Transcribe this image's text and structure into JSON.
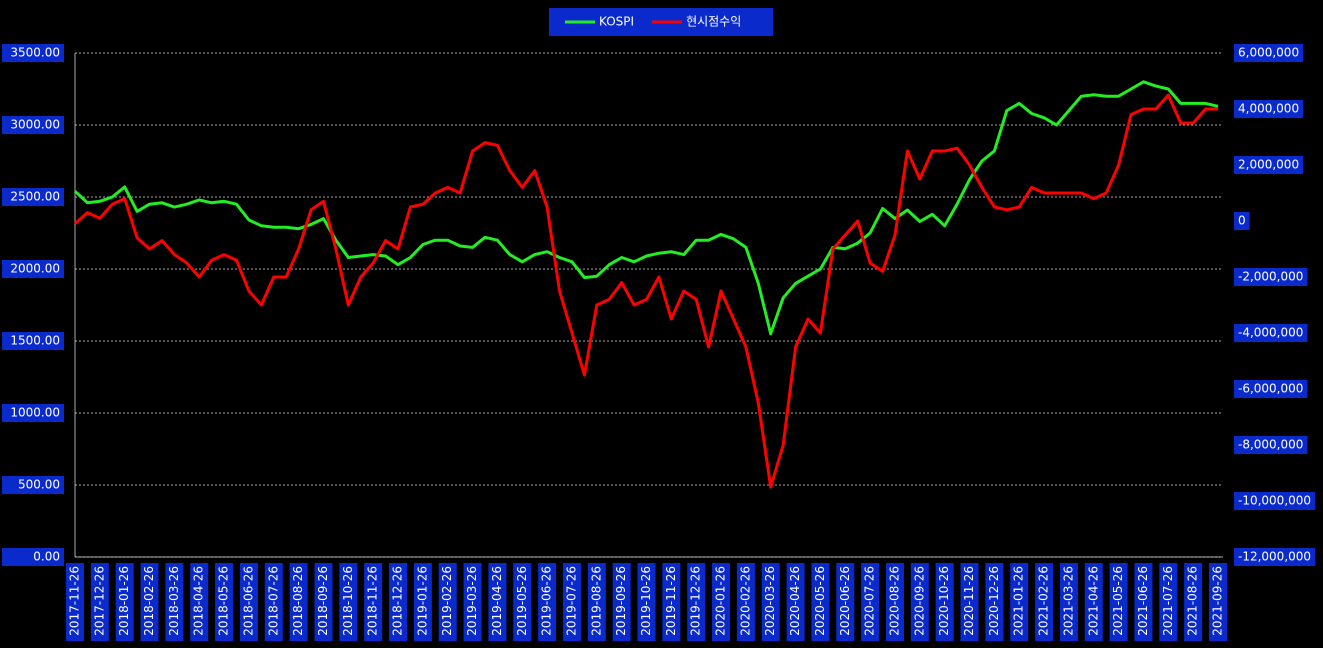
{
  "chart_data": {
    "type": "line",
    "grid": true,
    "categories": [
      "2017-11-26",
      null,
      "2017-12-26",
      null,
      "2018-01-26",
      null,
      "2018-02-26",
      null,
      "2018-03-26",
      null,
      "2018-04-26",
      null,
      "2018-05-26",
      null,
      "2018-06-26",
      null,
      "2018-07-26",
      null,
      "2018-08-26",
      null,
      "2018-09-26",
      null,
      "2018-10-26",
      null,
      "2018-11-26",
      null,
      "2018-12-26",
      null,
      "2019-01-26",
      null,
      "2019-02-26",
      null,
      "2019-03-26",
      null,
      "2019-04-26",
      null,
      "2019-05-26",
      null,
      "2019-06-26",
      null,
      "2019-07-26",
      null,
      "2019-08-26",
      null,
      "2019-09-26",
      null,
      "2019-10-26",
      null,
      "2019-11-26",
      null,
      "2019-12-26",
      null,
      "2020-01-26",
      null,
      "2020-02-26",
      null,
      "2020-03-26",
      null,
      "2020-04-26",
      null,
      "2020-05-26",
      null,
      "2020-06-26",
      null,
      "2020-07-26",
      null,
      "2020-08-26",
      null,
      "2020-09-26",
      null,
      "2020-10-26",
      null,
      "2020-11-26",
      null,
      "2020-12-26",
      null,
      "2021-01-26",
      null,
      "2021-02-26",
      null,
      "2021-03-26",
      null,
      "2021-04-26",
      null,
      "2021-05-26",
      null,
      "2021-06-26",
      null,
      "2021-07-26",
      null,
      "2021-08-26",
      null,
      "2021-09-26"
    ],
    "series": [
      {
        "name": "KOSPI",
        "color": "#22ee22",
        "values": [
          2540,
          2460,
          2470,
          2500,
          2570,
          2400,
          2450,
          2460,
          2430,
          2450,
          2480,
          2460,
          2470,
          2450,
          2340,
          2300,
          2290,
          2290,
          2280,
          2310,
          2350,
          2200,
          2080,
          2090,
          2100,
          2090,
          2030,
          2080,
          2170,
          2200,
          2200,
          2160,
          2150,
          2220,
          2200,
          2100,
          2050,
          2100,
          2120,
          2080,
          2050,
          1940,
          1950,
          2030,
          2080,
          2050,
          2090,
          2110,
          2120,
          2100,
          2200,
          2200,
          2240,
          2210,
          2150,
          1900,
          1550,
          1800,
          1900,
          1950,
          2000,
          2150,
          2140,
          2180,
          2250,
          2420,
          2350,
          2410,
          2330,
          2380,
          2300,
          2450,
          2620,
          2750,
          2820,
          3100,
          3150,
          3080,
          3050,
          3000,
          3100,
          3200,
          3210,
          3200,
          3200,
          3250,
          3300,
          3270,
          3250,
          3150,
          3150,
          3150,
          3130
        ]
      },
      {
        "name": "현시점수익",
        "color": "#ff0000",
        "axis": "y2",
        "values": [
          -100000,
          300000,
          100000,
          600000,
          800000,
          -600000,
          -1000000,
          -700000,
          -1200000,
          -1500000,
          -2000000,
          -1400000,
          -1200000,
          -1400000,
          -2500000,
          -3000000,
          -2000000,
          -2000000,
          -1000000,
          400000,
          700000,
          -1000000,
          -3000000,
          -2000000,
          -1500000,
          -700000,
          -1000000,
          500000,
          600000,
          1000000,
          1200000,
          1000000,
          2500000,
          2800000,
          2700000,
          1800000,
          1200000,
          1800000,
          500000,
          -2500000,
          -4000000,
          -5500000,
          -3000000,
          -2800000,
          -2200000,
          -3000000,
          -2800000,
          -2000000,
          -3500000,
          -2500000,
          -2800000,
          -4500000,
          -2500000,
          -3500000,
          -4500000,
          -6500000,
          -9500000,
          -8000000,
          -4500000,
          -3500000,
          -4000000,
          -1000000,
          -500000,
          0,
          -1500000,
          -1800000,
          -500000,
          2500000,
          1500000,
          2500000,
          2500000,
          2600000,
          2000000,
          1200000,
          500000,
          400000,
          500000,
          1200000,
          1000000,
          1000000,
          1000000,
          1000000,
          800000,
          1000000,
          2000000,
          3800000,
          4000000,
          4000000,
          4500000,
          3500000,
          3500000,
          4000000,
          4000000
        ]
      }
    ],
    "ylim": [
      0,
      3500
    ],
    "yticks": [
      {
        "value": 0,
        "label": "0.00"
      },
      {
        "value": 500,
        "label": "500.00"
      },
      {
        "value": 1000,
        "label": "1000.00"
      },
      {
        "value": 1500,
        "label": "1500.00"
      },
      {
        "value": 2000,
        "label": "2000.00"
      },
      {
        "value": 2500,
        "label": "2500.00"
      },
      {
        "value": 3000,
        "label": "3000.00"
      },
      {
        "value": 3500,
        "label": "3500.00"
      }
    ],
    "y2lim": [
      -12000000,
      6000000
    ],
    "y2ticks": [
      {
        "value": -12000000,
        "label": "-12,000,000"
      },
      {
        "value": -10000000,
        "label": "-10,000,000"
      },
      {
        "value": -8000000,
        "label": "-8,000,000"
      },
      {
        "value": -6000000,
        "label": "-6,000,000"
      },
      {
        "value": -4000000,
        "label": "-4,000,000"
      },
      {
        "value": -2000000,
        "label": "-2,000,000"
      },
      {
        "value": 0,
        "label": "0"
      },
      {
        "value": 2000000,
        "label": "2,000,000"
      },
      {
        "value": 4000000,
        "label": "4,000,000"
      },
      {
        "value": 6000000,
        "label": "6,000,000"
      }
    ]
  }
}
